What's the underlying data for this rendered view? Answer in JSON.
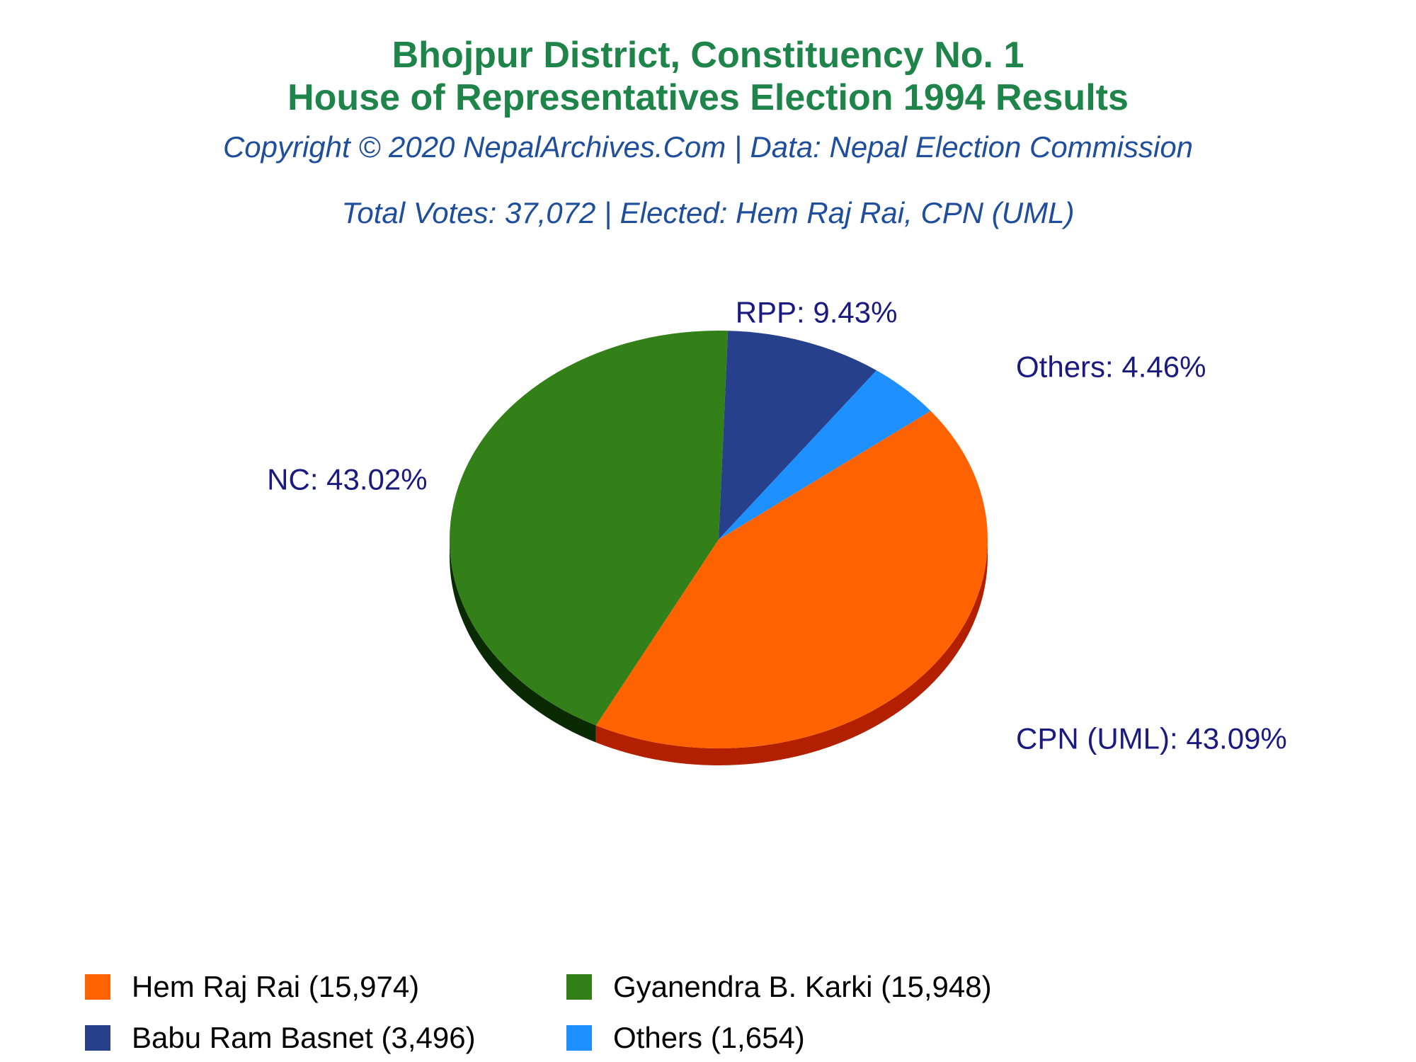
{
  "colors": {
    "title": "#1e8449",
    "subtitle": "#1f4e9c",
    "label": "#1a1a80"
  },
  "header": {
    "title_line1": "Bhojpur District, Constituency No. 1",
    "title_line2": "House of Representatives Election 1994 Results",
    "subtitle": "Copyright © 2020 NepalArchives.Com | Data: Nepal Election Commission",
    "summary": "Total Votes: 37,072 | Elected: Hem Raj Rai, CPN (UML)"
  },
  "chart_data": {
    "type": "pie",
    "title": "Bhojpur District, Constituency No. 1 House of Representatives Election 1994 Results",
    "start_angle_deg": -38,
    "slices": [
      {
        "name": "CPN (UML)",
        "value": 15974,
        "percent": 43.09,
        "label": "CPN (UML): 43.09%",
        "color": "#ff6200",
        "side_color": "#b32000"
      },
      {
        "name": "NC",
        "value": 15948,
        "percent": 43.02,
        "label": "NC: 43.02%",
        "color": "#338019",
        "side_color": "#0a2a04"
      },
      {
        "name": "RPP",
        "value": 3496,
        "percent": 9.43,
        "label": "RPP: 9.43%",
        "color": "#27408b",
        "side_color": "#0d1a40"
      },
      {
        "name": "Others",
        "value": 1654,
        "percent": 4.46,
        "label": "Others: 4.46%",
        "color": "#1e90ff",
        "side_color": "#0b4a8a"
      }
    ],
    "legend": [
      {
        "label": "Hem Raj Rai (15,974)",
        "color": "#ff6200"
      },
      {
        "label": "Gyanendra B. Karki (15,948)",
        "color": "#338019"
      },
      {
        "label": "Babu Ram Basnet (3,496)",
        "color": "#27408b"
      },
      {
        "label": "Others (1,654)",
        "color": "#1e90ff"
      }
    ]
  }
}
